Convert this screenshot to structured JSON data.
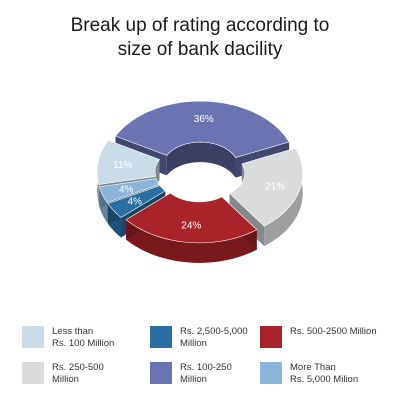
{
  "chart_data": {
    "type": "pie",
    "title_lines": [
      "Break up of rating according to",
      "size of bank dacility"
    ],
    "slices": [
      {
        "name": "Rs. 100-250\nMillion",
        "value": 36,
        "label": "36%",
        "color": "#6b73b3"
      },
      {
        "name": "Rs. 250-500\nMillion",
        "value": 21,
        "label": "21%",
        "color": "#d9dbdd"
      },
      {
        "name": "Rs. 500-2500 Million",
        "value": 24,
        "label": "24%",
        "color": "#a8232a"
      },
      {
        "name": "Rs. 2,500-5,000\nMillion",
        "value": 4,
        "label": "4%",
        "color": "#2a6fa3"
      },
      {
        "name": "More Than\nRs. 5,000 Milion",
        "value": 4,
        "label": "4%",
        "color": "#8ab4d9"
      },
      {
        "name": "Less than\nRs. 100 Million",
        "value": 11,
        "label": "11%",
        "color": "#c9dce7"
      }
    ],
    "legend_order": [
      5,
      3,
      2,
      1,
      0,
      4
    ],
    "legend_placement": "bottom"
  }
}
